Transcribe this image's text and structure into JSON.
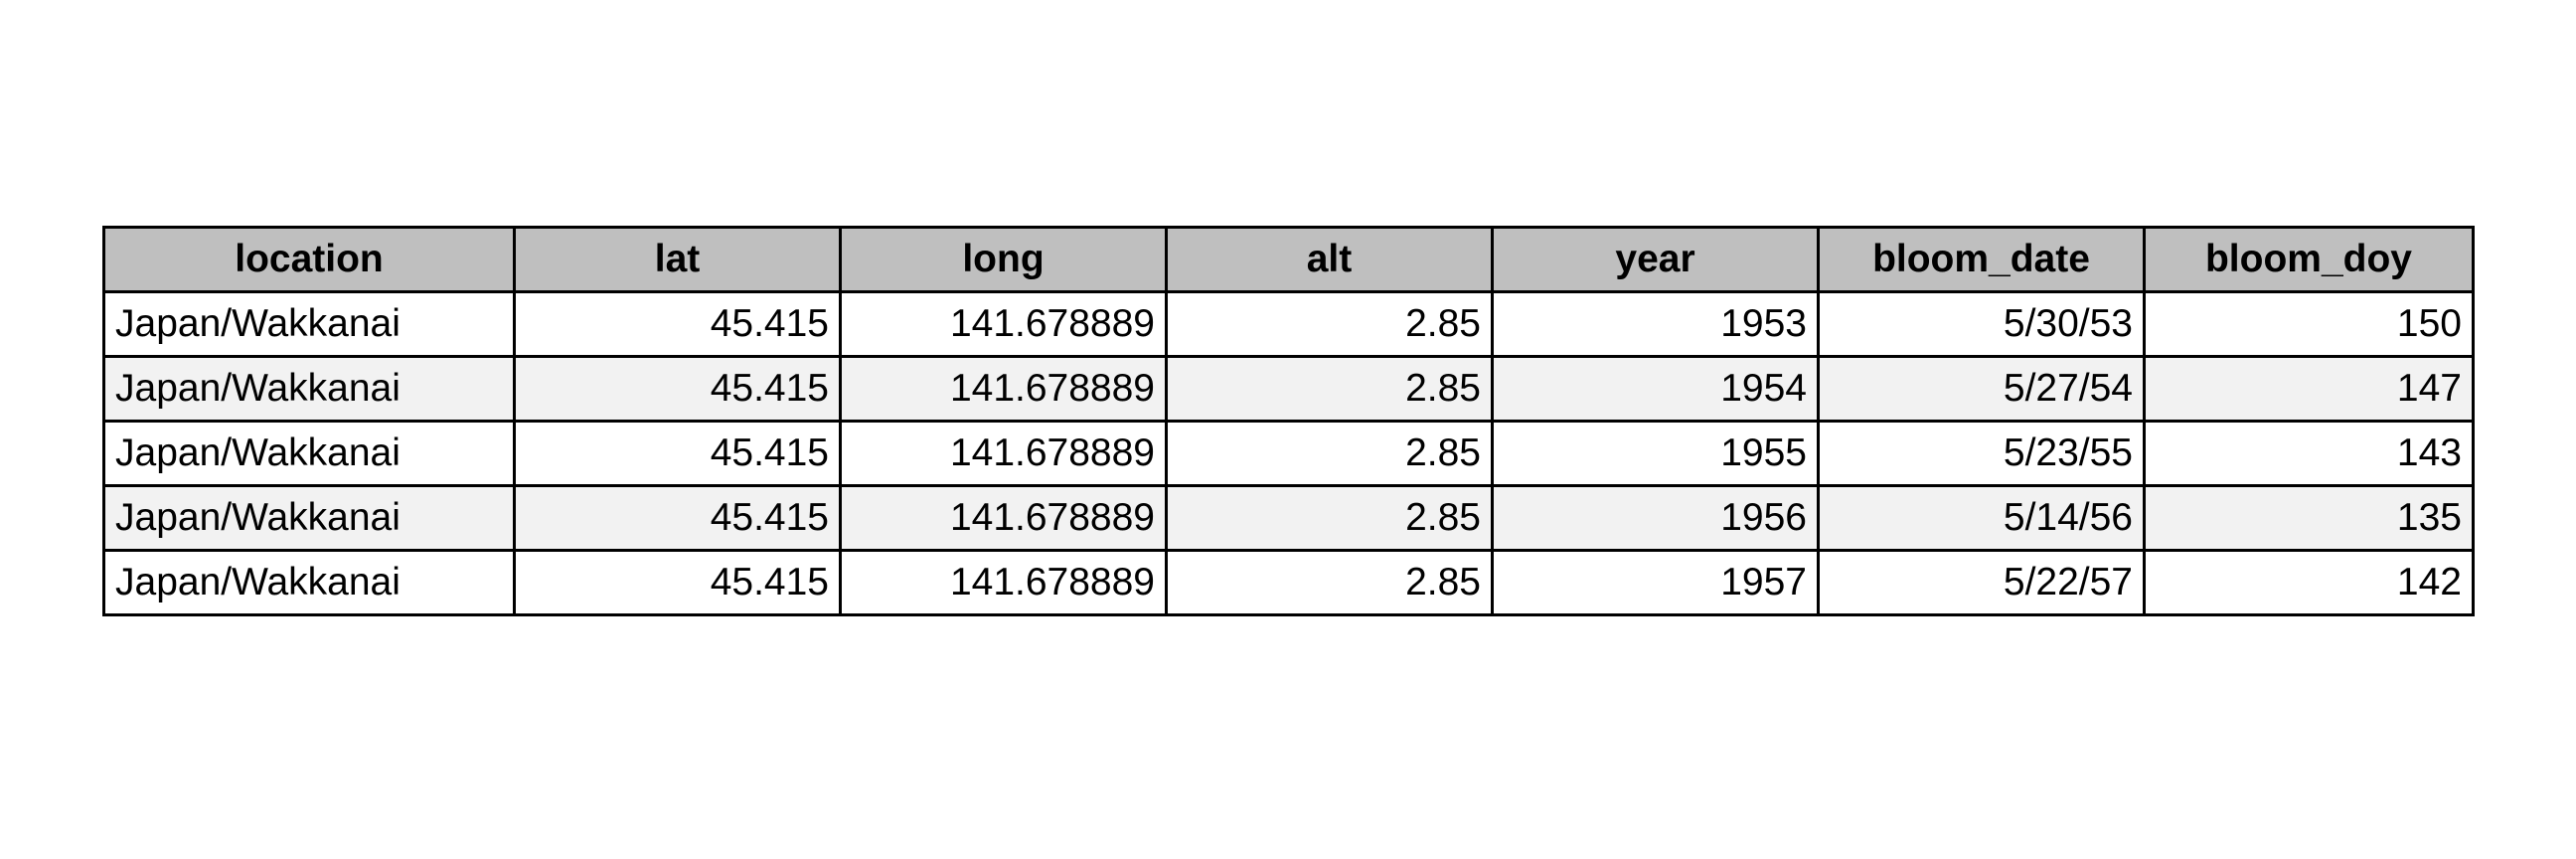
{
  "table": {
    "columns": [
      "location",
      "lat",
      "long",
      "alt",
      "year",
      "bloom_date",
      "bloom_doy"
    ],
    "rows": [
      [
        "Japan/Wakkanai",
        "45.415",
        "141.678889",
        "2.85",
        "1953",
        "5/30/53",
        "150"
      ],
      [
        "Japan/Wakkanai",
        "45.415",
        "141.678889",
        "2.85",
        "1954",
        "5/27/54",
        "147"
      ],
      [
        "Japan/Wakkanai",
        "45.415",
        "141.678889",
        "2.85",
        "1955",
        "5/23/55",
        "143"
      ],
      [
        "Japan/Wakkanai",
        "45.415",
        "141.678889",
        "2.85",
        "1956",
        "5/14/56",
        "135"
      ],
      [
        "Japan/Wakkanai",
        "45.415",
        "141.678889",
        "2.85",
        "1957",
        "5/22/57",
        "142"
      ]
    ]
  },
  "colors": {
    "header_bg": "#bfbfbf",
    "row_alt_bg": "#f2f2f2",
    "border": "#000000"
  }
}
